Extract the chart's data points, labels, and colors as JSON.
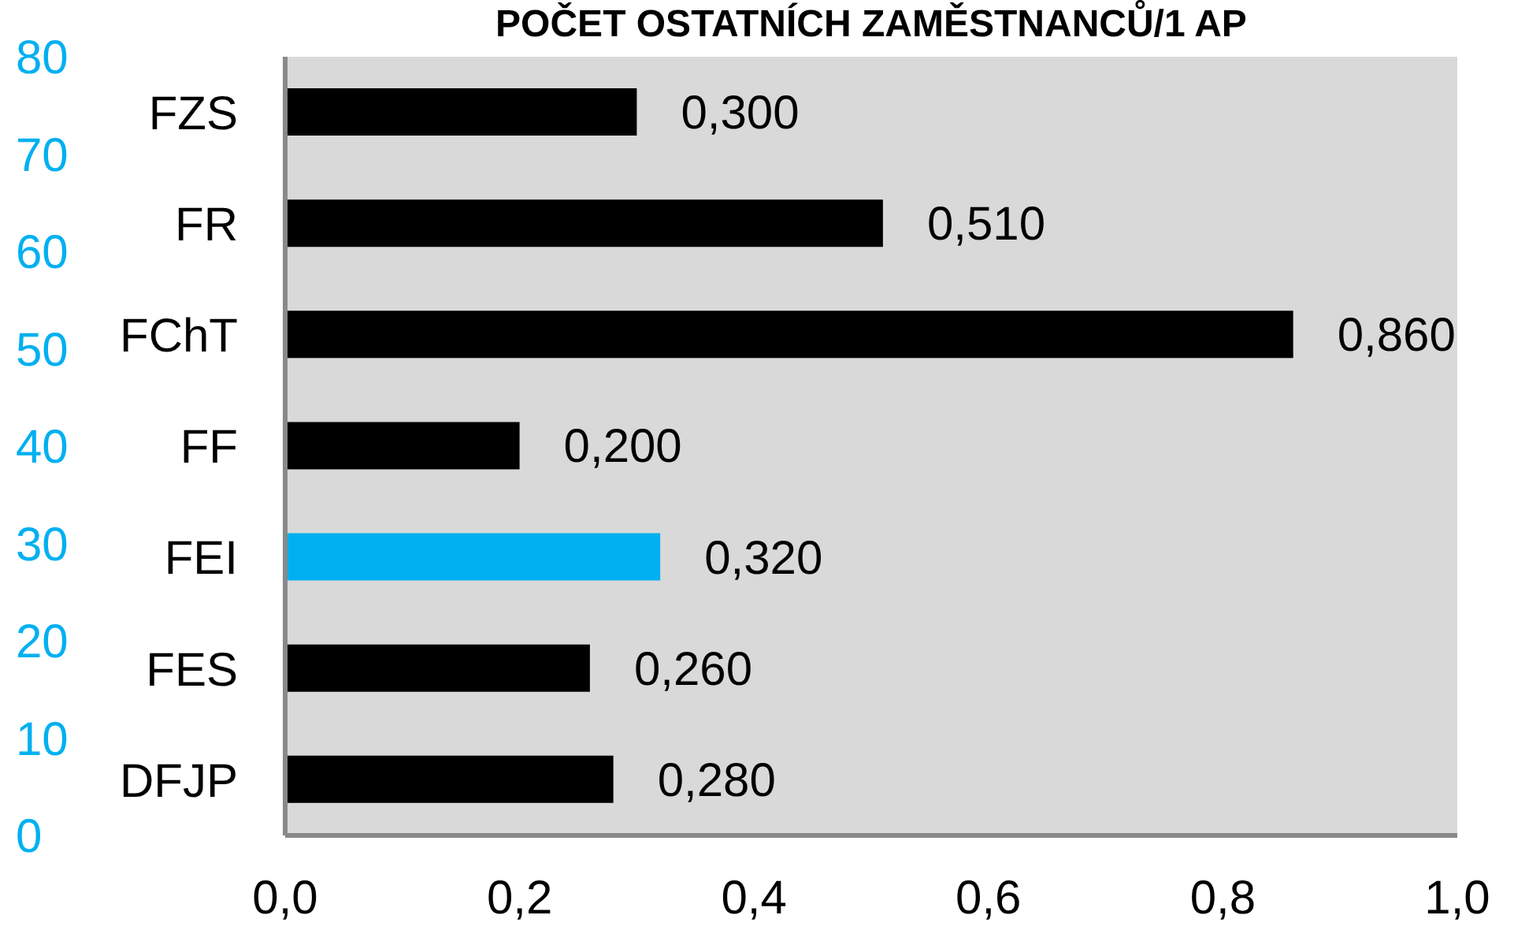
{
  "chart_data": {
    "type": "bar",
    "orientation": "horizontal",
    "title": "POČET OSTATNÍCH ZAMĚSTNANCŮ/1 AP",
    "categories": [
      "FZS",
      "FR",
      "FChT",
      "FF",
      "FEI",
      "FES",
      "DFJP"
    ],
    "values": [
      0.3,
      0.51,
      0.86,
      0.2,
      0.32,
      0.26,
      0.28
    ],
    "colors": [
      "#000000",
      "#000000",
      "#000000",
      "#000000",
      "#00b0f0",
      "#000000",
      "#000000"
    ],
    "value_labels": [
      "0,300",
      "0,510",
      "0,860",
      "0,200",
      "0,320",
      "0,260",
      "0,280"
    ],
    "xlim": [
      0,
      1
    ],
    "xticks": [
      {
        "value": 0,
        "label": "0,0"
      },
      {
        "value": 0.2,
        "label": "0,2"
      },
      {
        "value": 0.4,
        "label": "0,4"
      },
      {
        "value": 0.6,
        "label": "0,6"
      },
      {
        "value": 0.8,
        "label": "0,8"
      },
      {
        "value": 1,
        "label": "1,0"
      }
    ],
    "y2lim": [
      0,
      80
    ],
    "y2ticks": [
      0,
      10,
      20,
      30,
      40,
      50,
      60,
      70,
      80
    ]
  }
}
